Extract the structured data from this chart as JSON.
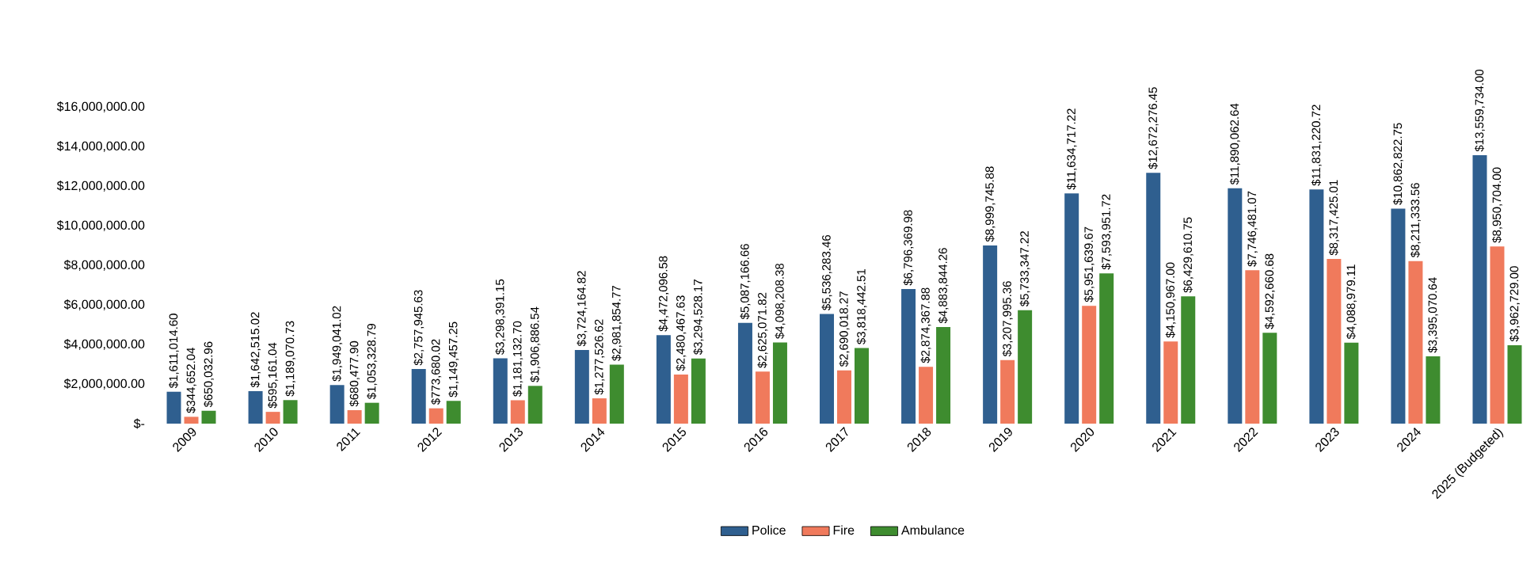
{
  "chart_data": {
    "type": "bar",
    "categories": [
      "2009",
      "2010",
      "2011",
      "2012",
      "2013",
      "2014",
      "2015",
      "2016",
      "2017",
      "2018",
      "2019",
      "2020",
      "2021",
      "2022",
      "2023",
      "2024",
      "2025 (Budgeted)"
    ],
    "series": [
      {
        "name": "Police",
        "color": "#2f5f8f",
        "values": [
          1611014.6,
          1642515.02,
          1949041.02,
          2757945.63,
          3298391.15,
          3724164.82,
          4472096.58,
          5087166.66,
          5536283.46,
          6796369.98,
          8999745.88,
          11634717.22,
          12672276.45,
          11890062.64,
          11831220.72,
          10862822.75,
          13559734.0
        ],
        "value_labels": [
          "$1,611,014.60",
          "$1,642,515.02",
          "$1,949,041.02",
          "$2,757,945.63",
          "$3,298,391.15",
          "$3,724,164.82",
          "$4,472,096.58",
          "$5,087,166.66",
          "$5,536,283.46",
          "$6,796,369.98",
          "$8,999,745.88",
          "$11,634,717.22",
          "$12,672,276.45",
          "$11,890,062.64",
          "$11,831,220.72",
          "$10,862,822.75",
          "$13,559,734.00"
        ]
      },
      {
        "name": "Fire",
        "color": "#f07a5c",
        "values": [
          344652.04,
          595161.04,
          680477.9,
          773680.02,
          1181132.7,
          1277526.62,
          2480467.63,
          2625071.82,
          2690018.27,
          2874367.88,
          3207995.36,
          5951639.67,
          4150967.0,
          7746481.07,
          8317425.01,
          8211333.56,
          8950704.0
        ],
        "value_labels": [
          "$344,652.04",
          "$595,161.04",
          "$680,477.90",
          "$773,680.02",
          "$1,181,132.70",
          "$1,277,526.62",
          "$2,480,467.63",
          "$2,625,071.82",
          "$2,690,018.27",
          "$2,874,367.88",
          "$3,207,995.36",
          "$5,951,639.67",
          "$4,150,967.00",
          "$7,746,481.07",
          "$8,317,425.01",
          "$8,211,333.56",
          "$8,950,704.00"
        ]
      },
      {
        "name": "Ambulance",
        "color": "#3e8c2f",
        "values": [
          650032.96,
          1189070.73,
          1053328.79,
          1149457.25,
          1906886.54,
          2981854.77,
          3294528.17,
          4098208.38,
          3818442.51,
          4883844.26,
          5733347.22,
          7593951.72,
          6429610.75,
          4592660.68,
          4088979.11,
          3395070.64,
          3962729.0
        ],
        "value_labels": [
          "$650,032.96",
          "$1,189,070.73",
          "$1,053,328.79",
          "$1,149,457.25",
          "$1,906,886.54",
          "$2,981,854.77",
          "$3,294,528.17",
          "$4,098,208.38",
          "$3,818,442.51",
          "$4,883,844.26",
          "$5,733,347.22",
          "$7,593,951.72",
          "$6,429,610.75",
          "$4,592,660.68",
          "$4,088,979.11",
          "$3,395,070.64",
          "$3,962,729.00"
        ]
      }
    ],
    "ylim": [
      0,
      16000000
    ],
    "yticks": [
      {
        "value": 0,
        "label": "$-"
      },
      {
        "value": 2000000,
        "label": "$2,000,000.00"
      },
      {
        "value": 4000000,
        "label": "$4,000,000.00"
      },
      {
        "value": 6000000,
        "label": "$6,000,000.00"
      },
      {
        "value": 8000000,
        "label": "$8,000,000.00"
      },
      {
        "value": 10000000,
        "label": "$10,000,000.00"
      },
      {
        "value": 12000000,
        "label": "$12,000,000.00"
      },
      {
        "value": 14000000,
        "label": "$14,000,000.00"
      },
      {
        "value": 16000000,
        "label": "$16,000,000.00"
      }
    ],
    "legend": "bottom"
  }
}
